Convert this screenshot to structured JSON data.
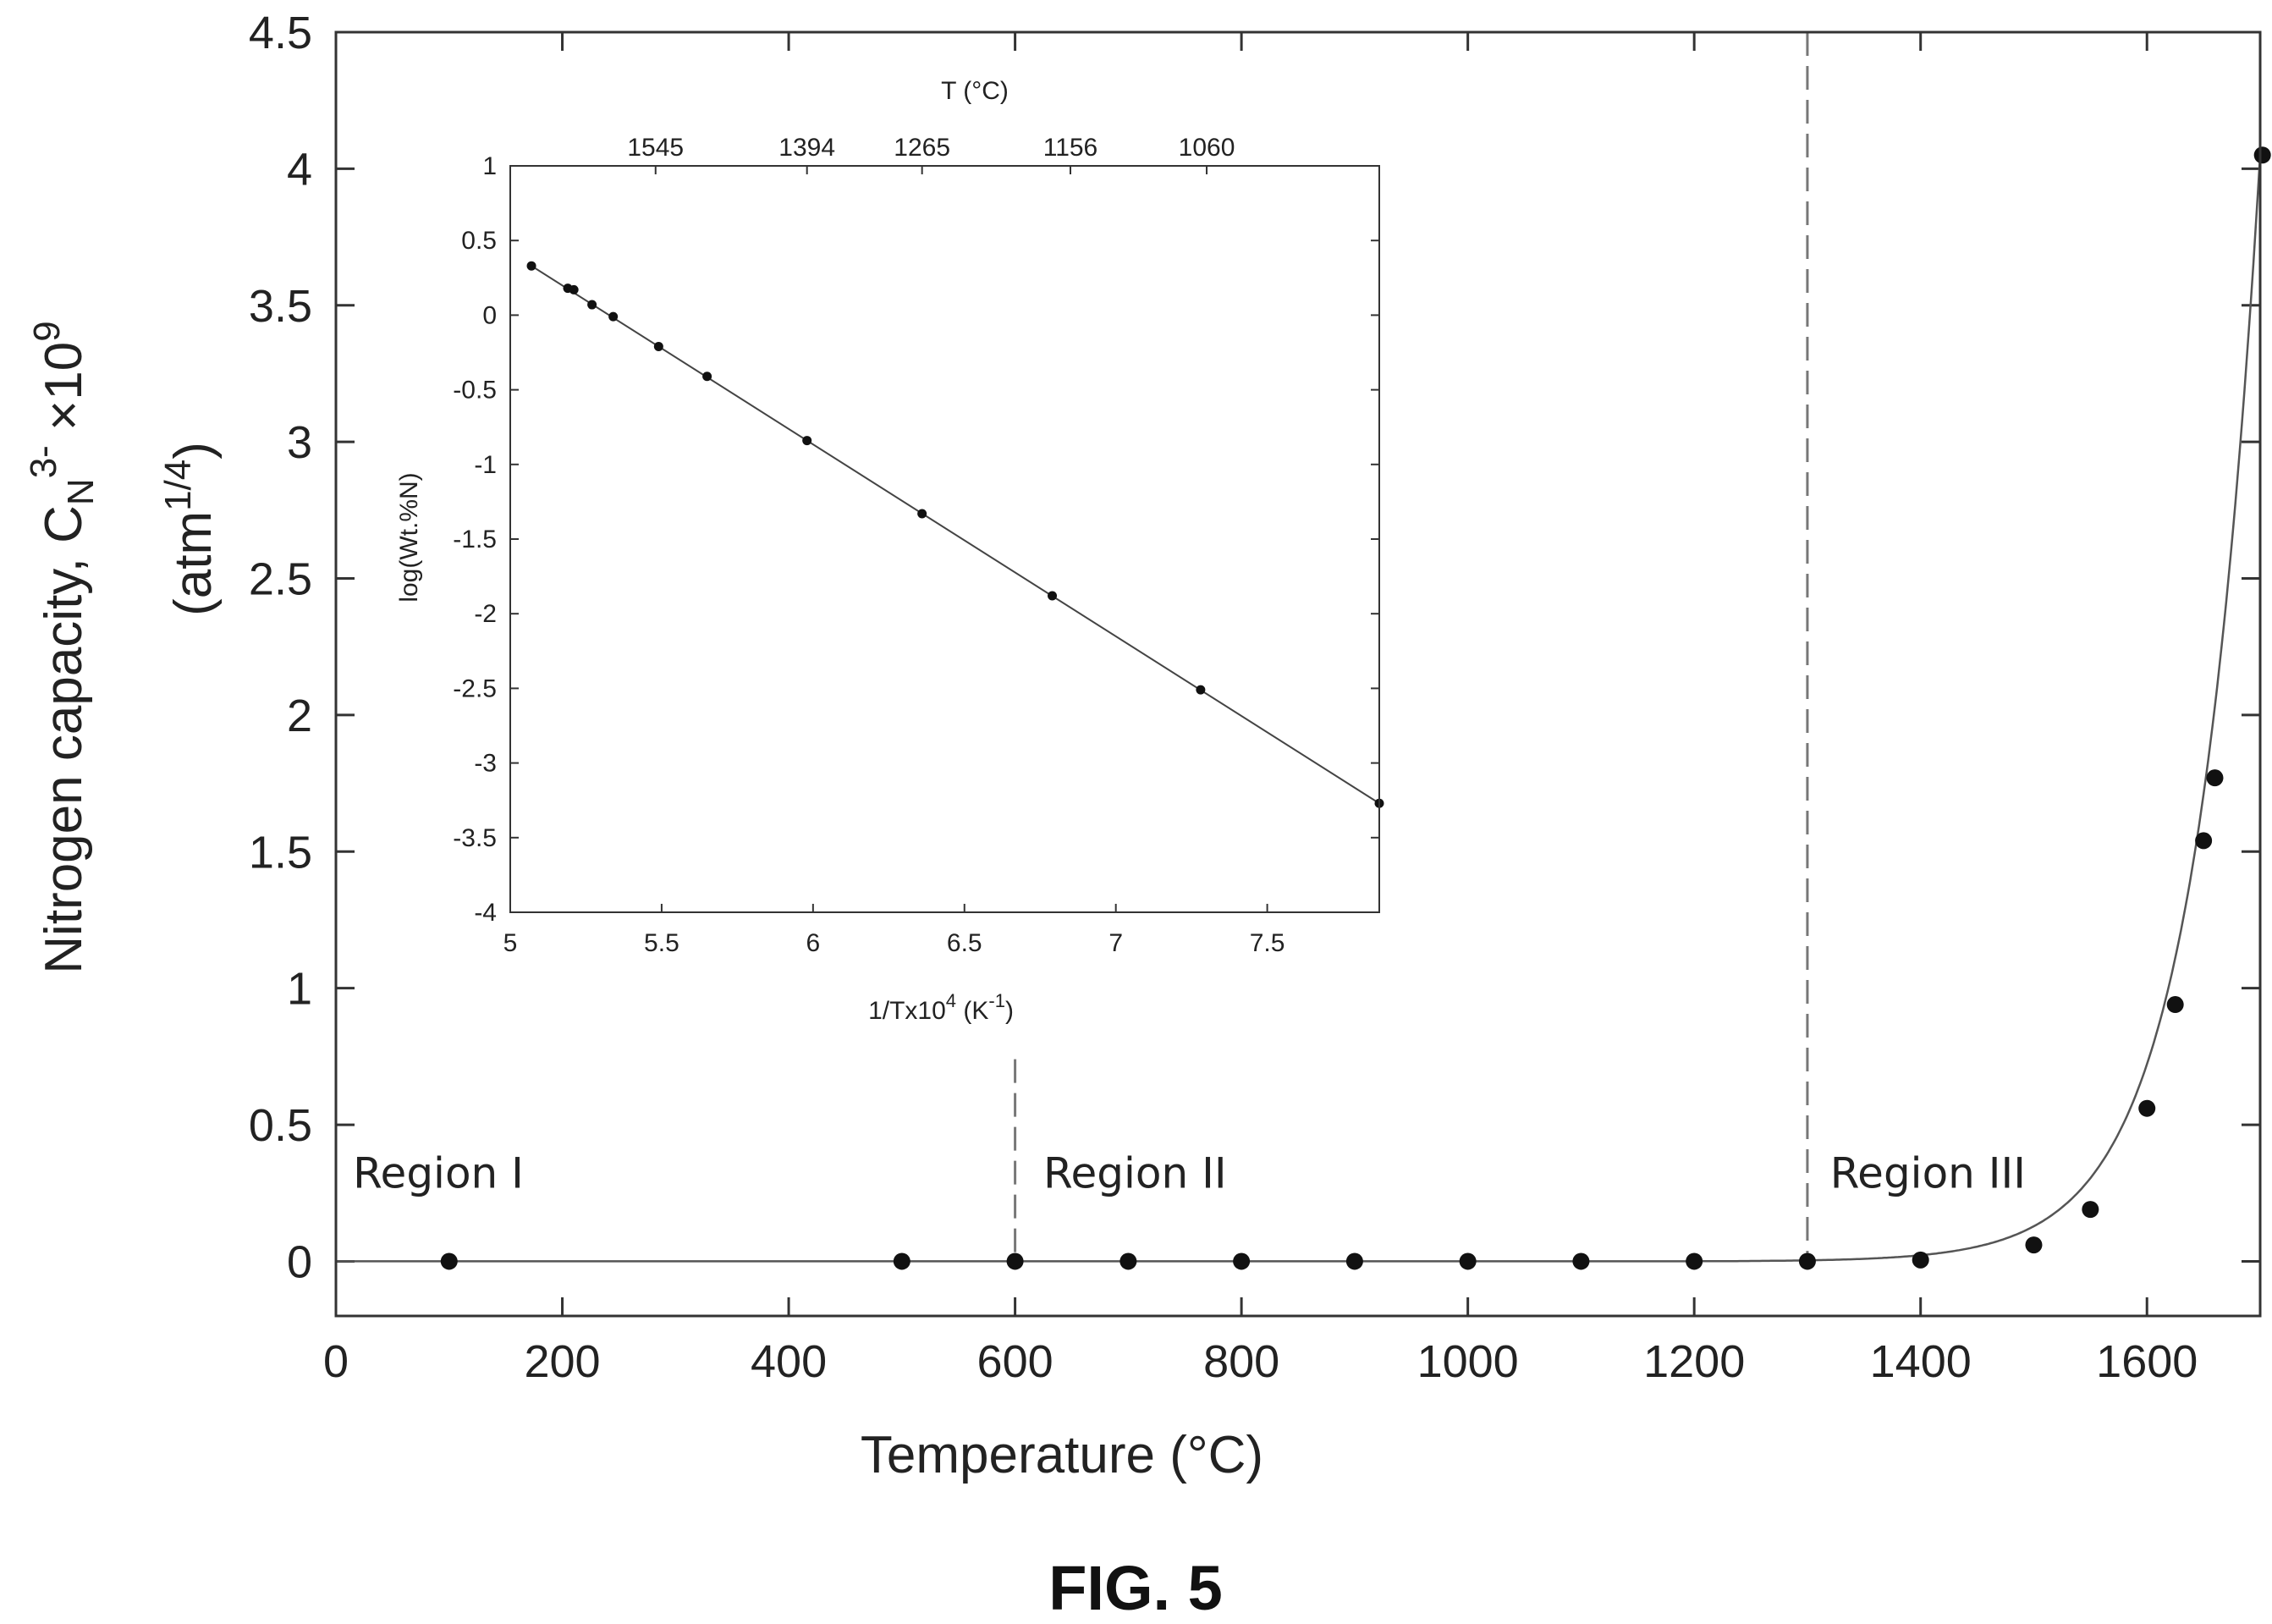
{
  "figure_caption": "FIG. 5",
  "colors": {
    "axis": "#333333",
    "curve": "#555555",
    "point": "#111111",
    "divider": "#777777"
  },
  "chart_data": [
    {
      "type": "scatter",
      "xlabel": "Temperature (°C)",
      "ylabel": {
        "main": "Nitrogen capacity, C",
        "sub": "N",
        "sup": "3-",
        "times": " ×10",
        "exp": "9",
        "units_prefix": "(atm",
        "units_exp": "1/4",
        "units_suffix": ")"
      },
      "xlim": [
        0,
        1700
      ],
      "ylim": [
        -0.2,
        4.5
      ],
      "xticks": [
        0,
        200,
        400,
        600,
        800,
        1000,
        1200,
        1400,
        1600
      ],
      "yticks": [
        0,
        0.5,
        1,
        1.5,
        2,
        2.5,
        3,
        3.5,
        4,
        4.5
      ],
      "xtick_labels": [
        "0",
        "200",
        "400",
        "600",
        "800",
        "1000",
        "1200",
        "1400",
        "1600"
      ],
      "ytick_labels": [
        "0",
        "0.5",
        "1",
        "1.5",
        "2",
        "2.5",
        "3",
        "3.5",
        "4",
        "4.5"
      ],
      "grid": false,
      "series": [
        {
          "points": [
            {
              "x": 100,
              "y": 0
            },
            {
              "x": 500,
              "y": 0
            },
            {
              "x": 600,
              "y": 0
            },
            {
              "x": 700,
              "y": 0
            },
            {
              "x": 800,
              "y": 0
            },
            {
              "x": 900,
              "y": 0
            },
            {
              "x": 1000,
              "y": 0
            },
            {
              "x": 1100,
              "y": 0
            },
            {
              "x": 1200,
              "y": 0
            },
            {
              "x": 1300,
              "y": 0
            },
            {
              "x": 1400,
              "y": 0.005
            },
            {
              "x": 1500,
              "y": 0.06
            },
            {
              "x": 1550,
              "y": 0.19
            },
            {
              "x": 1600,
              "y": 0.56
            },
            {
              "x": 1625,
              "y": 0.94
            },
            {
              "x": 1650,
              "y": 1.54
            },
            {
              "x": 1660,
              "y": 1.77
            },
            {
              "x": 1702,
              "y": 4.05
            }
          ]
        }
      ],
      "vertical_dividers": [
        {
          "x": 600,
          "from_y": 0.74,
          "to_y": 0
        },
        {
          "x": 1300,
          "from_y": 4.5,
          "to_y": 0
        }
      ],
      "regions": [
        {
          "label": "Region I",
          "x": 15,
          "y": 0.27
        },
        {
          "label": "Region II",
          "x": 625,
          "y": 0.27
        },
        {
          "label": "Region III",
          "x": 1320,
          "y": 0.27
        }
      ]
    },
    {
      "type": "scatter",
      "xlabel": {
        "main": "1/Tx10",
        "exp": "4",
        "unit_prefix": " (K",
        "unit_exp": "-1",
        "unit_suffix": ")"
      },
      "ylabel": "log(Wt.%N)",
      "top_xlabel": "T (°C)",
      "xlim": [
        5.0,
        7.87
      ],
      "ylim": [
        -4,
        1
      ],
      "xticks": [
        5,
        5.5,
        6,
        6.5,
        7,
        7.5
      ],
      "xtick_labels": [
        "5",
        "5.5",
        "6",
        "6.5",
        "7",
        "7.5"
      ],
      "yticks": [
        -4,
        -3.5,
        -3,
        -2.5,
        -2,
        -1.5,
        -1,
        -0.5,
        0,
        0.5,
        1
      ],
      "ytick_labels": [
        "-4",
        "-3.5",
        "-3",
        "-2.5",
        "-2",
        "-1.5",
        "-1",
        "-0.5",
        "0",
        "0.5",
        "1"
      ],
      "top_xticks": [
        5.48,
        5.98,
        6.36,
        6.85,
        7.3
      ],
      "top_xtick_labels": [
        "1545",
        "1394",
        "1265",
        "1156",
        "1060"
      ],
      "grid": false,
      "series": [
        {
          "points": [
            {
              "x": 5.07,
              "y": 0.33
            },
            {
              "x": 5.19,
              "y": 0.18
            },
            {
              "x": 5.21,
              "y": 0.17
            },
            {
              "x": 5.27,
              "y": 0.07
            },
            {
              "x": 5.34,
              "y": -0.01
            },
            {
              "x": 5.49,
              "y": -0.21
            },
            {
              "x": 5.65,
              "y": -0.41
            },
            {
              "x": 5.98,
              "y": -0.84
            },
            {
              "x": 6.36,
              "y": -1.33
            },
            {
              "x": 6.79,
              "y": -1.88
            },
            {
              "x": 7.28,
              "y": -2.51
            },
            {
              "x": 7.87,
              "y": -3.27
            }
          ],
          "fit_line": {
            "x0": 5.07,
            "y0": 0.33,
            "x1": 7.87,
            "y1": -3.27
          }
        }
      ]
    }
  ]
}
